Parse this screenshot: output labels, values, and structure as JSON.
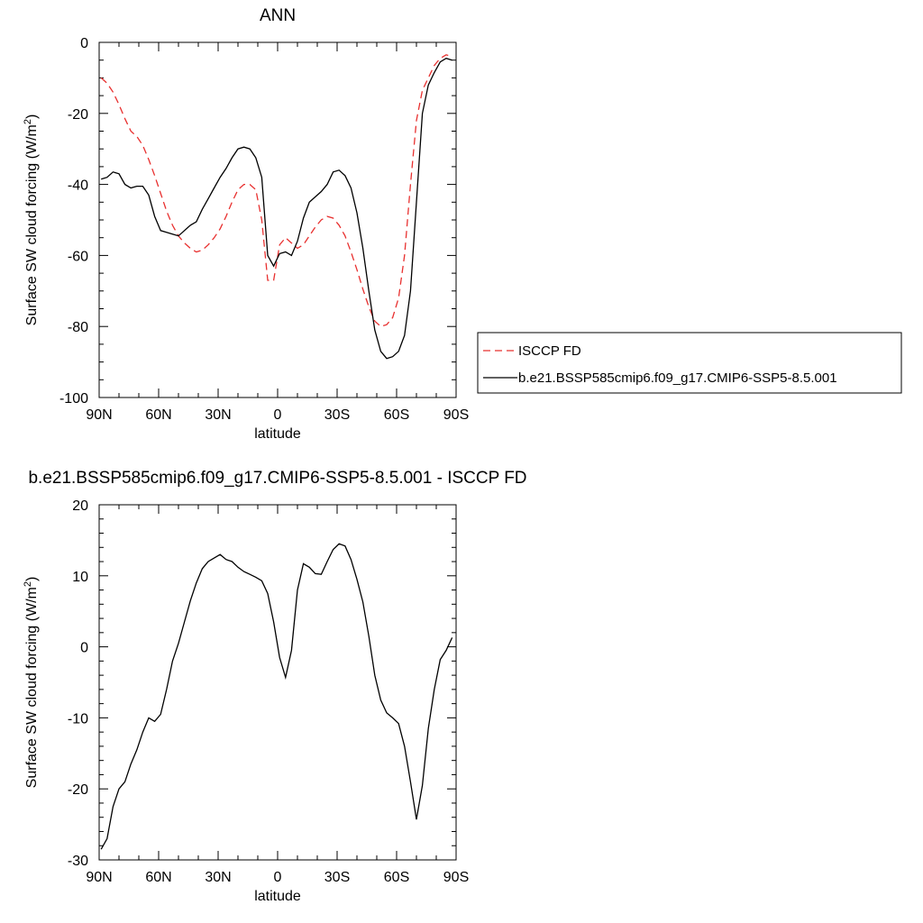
{
  "chart_data": [
    {
      "type": "line",
      "title": "ANN",
      "xlabel": "latitude",
      "ylabel": "Surface SW cloud forcing (W/m",
      "ylabel_sup": "2",
      "ylabel_close": ")",
      "xlim": [
        90,
        -90
      ],
      "ylim": [
        -100,
        0
      ],
      "x_ticks": [
        90,
        60,
        30,
        0,
        -30,
        -60,
        -90
      ],
      "x_tick_labels": [
        "90N",
        "60N",
        "30N",
        "0",
        "30S",
        "60S",
        "90S"
      ],
      "y_ticks": [
        0,
        -20,
        -40,
        -60,
        -80,
        -100
      ],
      "y_tick_labels": [
        "0",
        "-20",
        "-40",
        "-60",
        "-80",
        "-100"
      ],
      "legend_position": "right",
      "series": [
        {
          "name": "ISCCP FD",
          "color": "#e8302f",
          "dash": "dashed",
          "x": [
            89,
            86,
            83,
            80,
            77,
            74,
            71,
            68,
            65,
            62,
            59,
            56,
            53,
            50,
            47,
            44,
            41,
            38,
            35,
            32,
            29,
            26,
            23,
            20,
            17,
            14,
            11,
            8,
            5,
            2,
            -1,
            -4,
            -7,
            -10,
            -13,
            -16,
            -19,
            -22,
            -25,
            -28,
            -31,
            -34,
            -37,
            -40,
            -43,
            -46,
            -49,
            -52,
            -55,
            -58,
            -61,
            -64,
            -67,
            -70,
            -73,
            -76,
            -79,
            -82,
            -85,
            -88
          ],
          "y": [
            -10,
            -11.5,
            -14,
            -17.5,
            -21.5,
            -25,
            -26.5,
            -29,
            -33,
            -37.5,
            -42.5,
            -47.5,
            -51.5,
            -54.5,
            -56.5,
            -58,
            -59,
            -58.5,
            -57,
            -55,
            -52.5,
            -49,
            -45,
            -41.5,
            -40,
            -40,
            -41.5,
            -50,
            -67,
            -67,
            -57,
            -55,
            -56.5,
            -58,
            -57,
            -54.5,
            -52,
            -50,
            -49,
            -49.5,
            -51.5,
            -54.5,
            -59,
            -64,
            -69.5,
            -74.5,
            -78.5,
            -80,
            -79.5,
            -77.5,
            -72,
            -60,
            -40,
            -22,
            -13.5,
            -10,
            -6.5,
            -4.5,
            -3.5,
            -4
          ]
        },
        {
          "name": "b.e21.BSSP585cmip6.f09_g17.CMIP6-SSP5-8.5.001",
          "color": "#000000",
          "dash": "solid",
          "x": [
            89,
            86,
            83,
            80,
            77,
            74,
            71,
            68,
            65,
            62,
            59,
            56,
            53,
            50,
            47,
            44,
            41,
            38,
            35,
            32,
            29,
            26,
            23,
            20,
            17,
            14,
            11,
            8,
            5,
            2,
            -1,
            -4,
            -7,
            -10,
            -13,
            -16,
            -19,
            -22,
            -25,
            -28,
            -31,
            -34,
            -37,
            -40,
            -43,
            -46,
            -49,
            -52,
            -55,
            -58,
            -61,
            -64,
            -67,
            -70,
            -73,
            -76,
            -79,
            -82,
            -85,
            -88
          ],
          "y": [
            -38.5,
            -38,
            -36.5,
            -37,
            -40,
            -41,
            -40.5,
            -40.5,
            -43,
            -49,
            -53,
            -53.5,
            -54,
            -54.5,
            -53,
            -51.5,
            -50.5,
            -47,
            -44,
            -41,
            -38,
            -35.5,
            -32.5,
            -30,
            -29.5,
            -30,
            -32.5,
            -38,
            -60,
            -63,
            -59.5,
            -59,
            -60,
            -56,
            -49.5,
            -45,
            -43.5,
            -42,
            -40,
            -36.5,
            -36,
            -37.5,
            -41,
            -48,
            -58,
            -70,
            -81,
            -87,
            -89,
            -88.5,
            -87,
            -82.5,
            -70,
            -45,
            -20,
            -12,
            -8.5,
            -5.5,
            -4.5,
            -5
          ]
        }
      ]
    },
    {
      "type": "line",
      "title": "b.e21.BSSP585cmip6.f09_g17.CMIP6-SSP5-8.5.001 - ISCCP FD",
      "xlabel": "latitude",
      "ylabel": "Surface SW cloud forcing (W/m",
      "ylabel_sup": "2",
      "ylabel_close": ")",
      "xlim": [
        90,
        -90
      ],
      "ylim": [
        -30,
        20
      ],
      "x_ticks": [
        90,
        60,
        30,
        0,
        -30,
        -60,
        -90
      ],
      "x_tick_labels": [
        "90N",
        "60N",
        "30N",
        "0",
        "30S",
        "60S",
        "90S"
      ],
      "y_ticks": [
        20,
        10,
        0,
        -10,
        -20,
        -30
      ],
      "y_tick_labels": [
        "20",
        "10",
        "0",
        "-10",
        "-20",
        "-30"
      ],
      "series": [
        {
          "name": "",
          "color": "#000000",
          "dash": "solid",
          "x": [
            89,
            86,
            83,
            80,
            77,
            74,
            71,
            68,
            65,
            62,
            59,
            56,
            53,
            50,
            47,
            44,
            41,
            38,
            35,
            32,
            29,
            26,
            23,
            20,
            17,
            14,
            11,
            8,
            5,
            2,
            -1,
            -4,
            -7,
            -10,
            -13,
            -16,
            -19,
            -22,
            -25,
            -28,
            -31,
            -34,
            -37,
            -40,
            -43,
            -46,
            -49,
            -52,
            -55,
            -58,
            -61,
            -64,
            -67,
            -70,
            -73,
            -76,
            -79,
            -82,
            -85,
            -88
          ],
          "y": [
            -28.5,
            -27,
            -22.5,
            -20,
            -19,
            -16.5,
            -14.5,
            -12,
            -10,
            -10.5,
            -9.5,
            -6,
            -2,
            0.5,
            3.5,
            6.5,
            9,
            11,
            12,
            12.5,
            13,
            12.3,
            12,
            11.2,
            10.6,
            10.2,
            9.8,
            9.3,
            7.5,
            3.5,
            -1.5,
            -4.3,
            -0.5,
            8,
            11.7,
            11.2,
            10.3,
            10.2,
            12,
            13.7,
            14.5,
            14.2,
            12.3,
            9.5,
            6.3,
            1.5,
            -4,
            -7.5,
            -9.3,
            -10,
            -10.8,
            -14,
            -19,
            -24.3,
            -19.5,
            -11.5,
            -6,
            -1.8,
            -0.5,
            1.3
          ]
        }
      ]
    }
  ]
}
